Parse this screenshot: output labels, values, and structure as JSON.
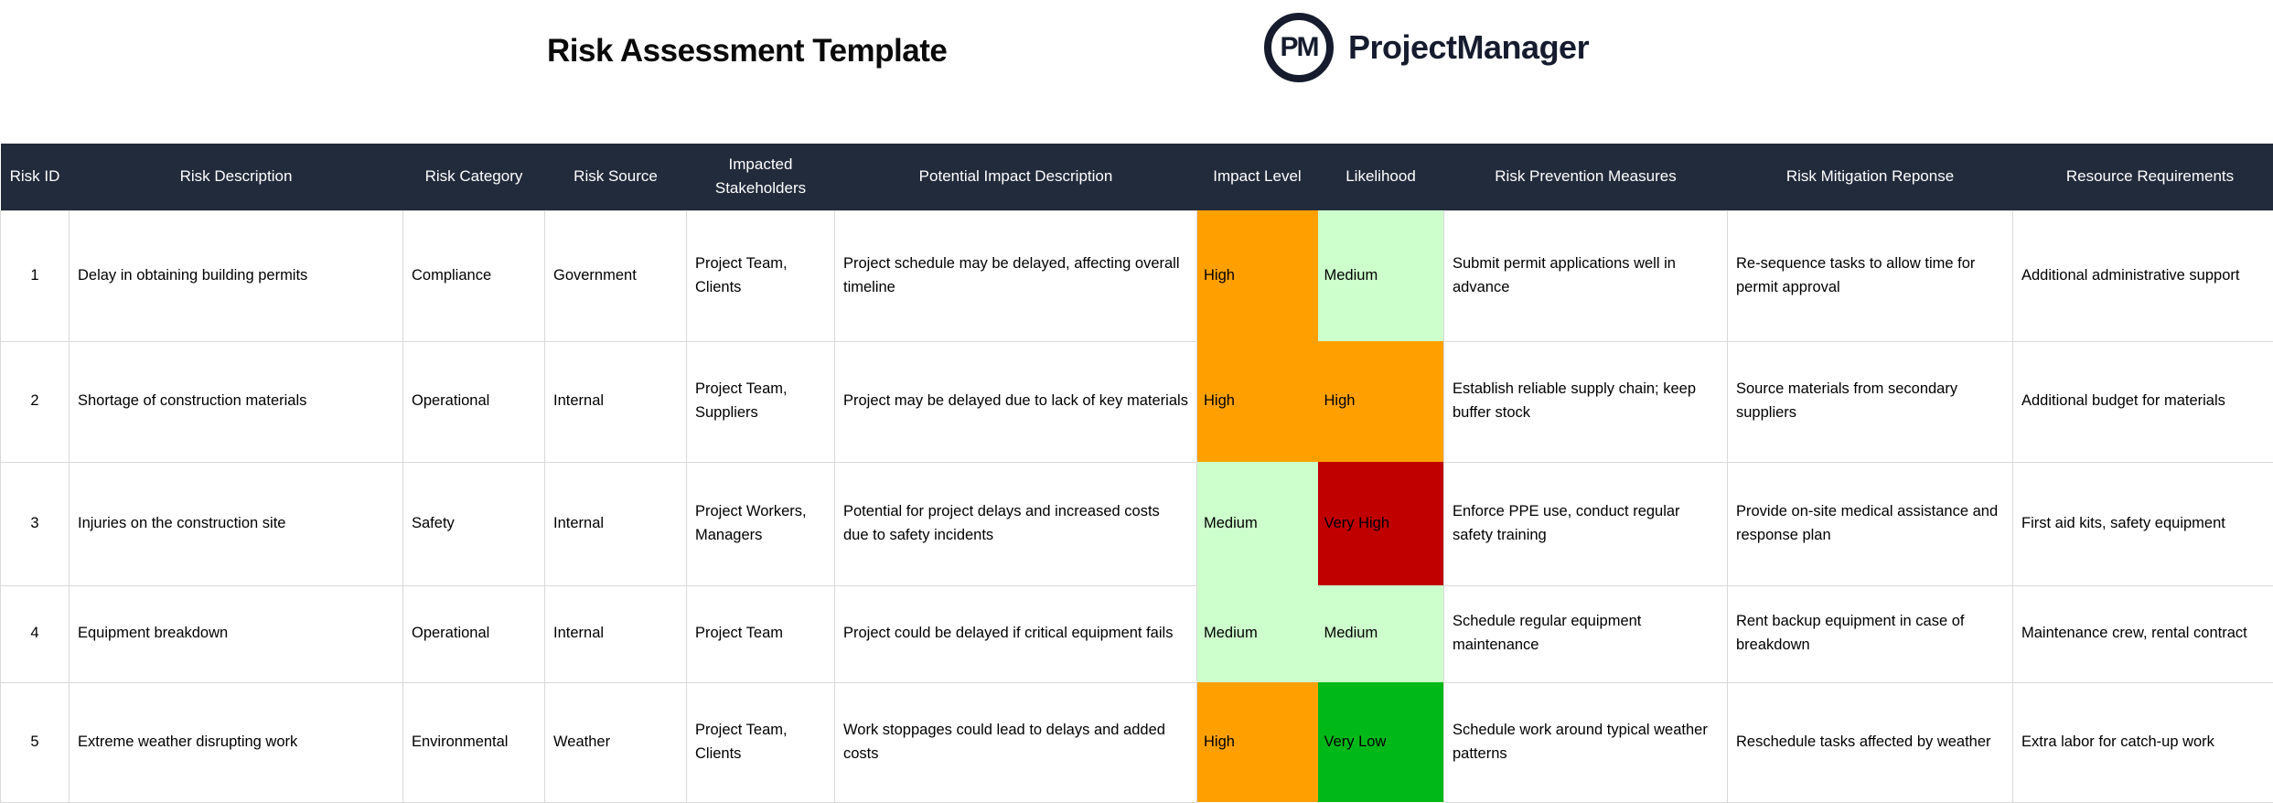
{
  "page": {
    "title": "Risk Assessment Template"
  },
  "brand": {
    "monogram": "PM",
    "name": "ProjectManager"
  },
  "colors": {
    "header_bg": "#222b3b",
    "header_text": "#ffffff",
    "brand_navy": "#161c2e",
    "grid_line": "#d9d9d9",
    "level_colors": {
      "High": "#ffa000",
      "Medium": "#ccffcc",
      "Very High": "#c00000",
      "Very Low": "#00b818",
      "Low": "#ccffcc"
    }
  },
  "table": {
    "columns": [
      "Risk ID",
      "Risk Description",
      "Risk Category",
      "Risk Source",
      "Impacted Stakeholders",
      "Potential Impact Description",
      "Impact Level",
      "Likelihood",
      "Risk Prevention Measures",
      "Risk Mitigation Reponse",
      "Resource Requirements"
    ],
    "rows": [
      {
        "id": "1",
        "description": "Delay in obtaining building permits",
        "category": "Compliance",
        "source": "Government",
        "stakeholders": "Project Team, Clients",
        "impact_description": "Project schedule may be delayed, affecting overall timeline",
        "impact_level": "High",
        "likelihood": "Medium",
        "prevention": "Submit permit applications well in advance",
        "mitigation": "Re-sequence tasks to allow time for permit approval",
        "resources": "Additional administrative support"
      },
      {
        "id": "2",
        "description": "Shortage of construction materials",
        "category": "Operational",
        "source": "Internal",
        "stakeholders": "Project Team, Suppliers",
        "impact_description": "Project may be delayed due to lack of key materials",
        "impact_level": "High",
        "likelihood": "High",
        "prevention": "Establish reliable supply chain; keep buffer stock",
        "mitigation": "Source materials from secondary suppliers",
        "resources": "Additional budget for materials"
      },
      {
        "id": "3",
        "description": "Injuries on the construction site",
        "category": "Safety",
        "source": "Internal",
        "stakeholders": "Project Workers, Managers",
        "impact_description": "Potential for project delays and increased costs due to safety incidents",
        "impact_level": "Medium",
        "likelihood": "Very High",
        "prevention": "Enforce PPE use, conduct regular safety training",
        "mitigation": "Provide on-site medical assistance and response plan",
        "resources": "First aid kits, safety equipment"
      },
      {
        "id": "4",
        "description": "Equipment breakdown",
        "category": "Operational",
        "source": "Internal",
        "stakeholders": "Project Team",
        "impact_description": "Project could be delayed if critical equipment fails",
        "impact_level": "Medium",
        "likelihood": "Medium",
        "prevention": "Schedule regular equipment maintenance",
        "mitigation": "Rent backup equipment in case of breakdown",
        "resources": "Maintenance crew, rental contract"
      },
      {
        "id": "5",
        "description": "Extreme weather disrupting work",
        "category": "Environmental",
        "source": "Weather",
        "stakeholders": "Project Team, Clients",
        "impact_description": "Work stoppages could lead to delays and added costs",
        "impact_level": "High",
        "likelihood": "Very Low",
        "prevention": "Schedule work around typical weather patterns",
        "mitigation": "Reschedule tasks affected by weather",
        "resources": "Extra labor for catch-up work"
      }
    ]
  }
}
